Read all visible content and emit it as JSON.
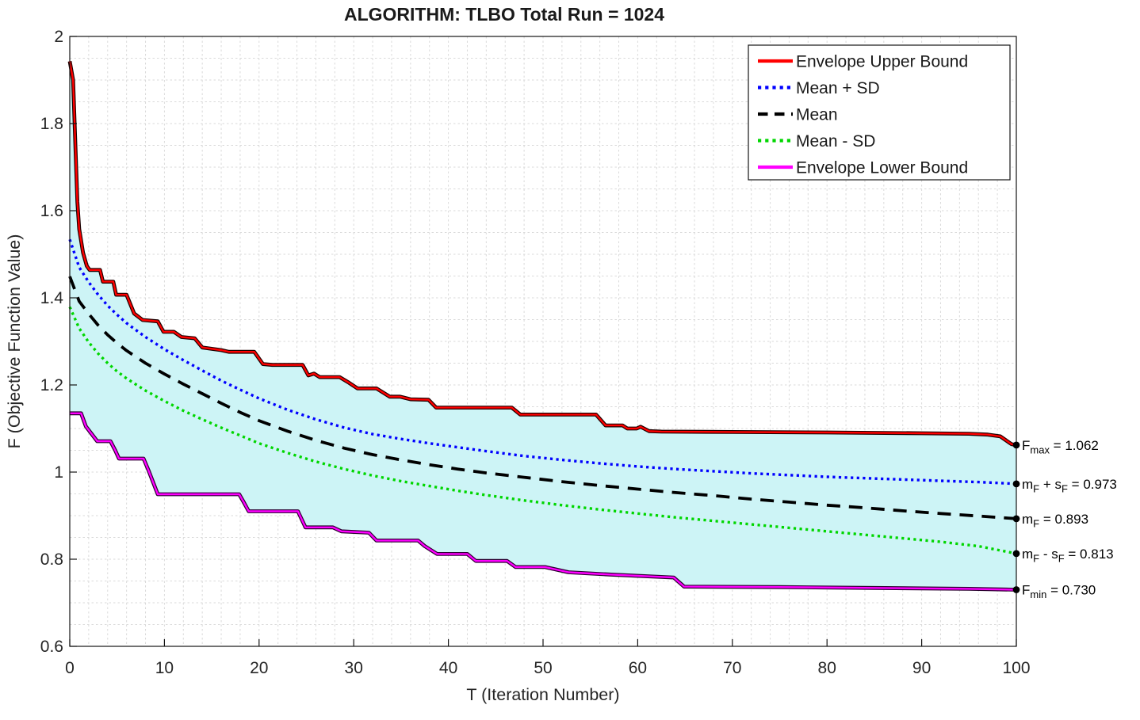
{
  "chart_data": {
    "type": "line",
    "title": "ALGORITHM: TLBO   Total Run = 1024",
    "xlabel": "T (Iteration Number)",
    "ylabel": "F (Objective Function Value)",
    "xlim": [
      0,
      100
    ],
    "ylim": [
      0.6,
      2
    ],
    "xticks": [
      0,
      10,
      20,
      30,
      40,
      50,
      60,
      70,
      80,
      90,
      100
    ],
    "xtick_labels": [
      "0",
      "10",
      "20",
      "30",
      "40",
      "50",
      "60",
      "70",
      "80",
      "90",
      "100"
    ],
    "yticks": [
      0.6,
      0.8,
      1.0,
      1.2,
      1.4,
      1.6,
      1.8,
      2.0
    ],
    "ytick_labels": [
      "0.6",
      "0.8",
      "1",
      "1.2",
      "1.4",
      "1.6",
      "1.8",
      "2"
    ],
    "grid": "minor-dashed",
    "minor_grid": {
      "x_step": 2,
      "y_step": 0.05
    },
    "colors": {
      "grid": "#dadada",
      "axis": "#141414",
      "tick_label": "#262626",
      "title": "#1a1a1a",
      "envelope_fill": "#cdf4f6",
      "annotation_marker": "#000000"
    },
    "legend": {
      "position": "top-right",
      "entries": [
        "Envelope Upper Bound",
        "Mean + SD",
        "Mean",
        "Mean - SD",
        "Envelope Lower Bound"
      ]
    },
    "series": [
      {
        "name": "Envelope Upper Bound",
        "color": "#ff0000",
        "outline": "#1c0000",
        "line": "solid",
        "points": [
          [
            0,
            1.943
          ],
          [
            0.35,
            1.9
          ],
          [
            0.8,
            1.62
          ],
          [
            1,
            1.558
          ],
          [
            1.4,
            1.504
          ],
          [
            1.8,
            1.473
          ],
          [
            2.1,
            1.464
          ],
          [
            3.2,
            1.464
          ],
          [
            3.5,
            1.437
          ],
          [
            4.6,
            1.437
          ],
          [
            4.9,
            1.407
          ],
          [
            6,
            1.407
          ],
          [
            6.8,
            1.364
          ],
          [
            7.7,
            1.349
          ],
          [
            9.3,
            1.346
          ],
          [
            9.9,
            1.322
          ],
          [
            11,
            1.322
          ],
          [
            11.8,
            1.31
          ],
          [
            13.2,
            1.307
          ],
          [
            14,
            1.286
          ],
          [
            16,
            1.28
          ],
          [
            16.8,
            1.276
          ],
          [
            19.5,
            1.276
          ],
          [
            20.4,
            1.248
          ],
          [
            21.4,
            1.246
          ],
          [
            24.6,
            1.246
          ],
          [
            25.2,
            1.222
          ],
          [
            25.8,
            1.226
          ],
          [
            26.4,
            1.218
          ],
          [
            28.5,
            1.218
          ],
          [
            29.5,
            1.205
          ],
          [
            30.4,
            1.192
          ],
          [
            32.4,
            1.192
          ],
          [
            33.8,
            1.173
          ],
          [
            34.9,
            1.173
          ],
          [
            36,
            1.167
          ],
          [
            37.9,
            1.166
          ],
          [
            38.7,
            1.148
          ],
          [
            46.7,
            1.148
          ],
          [
            47.6,
            1.132
          ],
          [
            55.6,
            1.132
          ],
          [
            56.6,
            1.107
          ],
          [
            58.4,
            1.107
          ],
          [
            58.9,
            1.1
          ],
          [
            59.9,
            1.1
          ],
          [
            60.3,
            1.104
          ],
          [
            61.2,
            1.094
          ],
          [
            62.5,
            1.093
          ],
          [
            70,
            1.092
          ],
          [
            80,
            1.091
          ],
          [
            90,
            1.089
          ],
          [
            95,
            1.088
          ],
          [
            97,
            1.086
          ],
          [
            98.3,
            1.082
          ],
          [
            99.5,
            1.064
          ],
          [
            100,
            1.062
          ]
        ]
      },
      {
        "name": "Mean + SD",
        "color": "#0000ff",
        "line": "dotted",
        "points": [
          [
            0,
            1.534
          ],
          [
            1,
            1.47
          ],
          [
            2,
            1.436
          ],
          [
            3,
            1.407
          ],
          [
            4,
            1.382
          ],
          [
            5,
            1.361
          ],
          [
            6,
            1.342
          ],
          [
            8,
            1.31
          ],
          [
            10,
            1.282
          ],
          [
            12,
            1.257
          ],
          [
            14,
            1.233
          ],
          [
            16,
            1.21
          ],
          [
            18,
            1.189
          ],
          [
            20,
            1.169
          ],
          [
            23,
            1.143
          ],
          [
            26,
            1.121
          ],
          [
            29,
            1.102
          ],
          [
            32,
            1.087
          ],
          [
            35,
            1.076
          ],
          [
            38,
            1.066
          ],
          [
            41,
            1.057
          ],
          [
            44,
            1.048
          ],
          [
            48,
            1.037
          ],
          [
            52,
            1.028
          ],
          [
            56,
            1.02
          ],
          [
            60,
            1.013
          ],
          [
            64,
            1.007
          ],
          [
            68,
            1.002
          ],
          [
            72,
            0.997
          ],
          [
            76,
            0.993
          ],
          [
            80,
            0.989
          ],
          [
            84,
            0.986
          ],
          [
            88,
            0.983
          ],
          [
            92,
            0.98
          ],
          [
            96,
            0.977
          ],
          [
            100,
            0.973
          ]
        ]
      },
      {
        "name": "Mean",
        "color": "#000000",
        "line": "dashed",
        "points": [
          [
            0,
            1.449
          ],
          [
            1,
            1.392
          ],
          [
            2,
            1.363
          ],
          [
            3,
            1.337
          ],
          [
            4,
            1.315
          ],
          [
            5,
            1.296
          ],
          [
            6,
            1.279
          ],
          [
            8,
            1.25
          ],
          [
            10,
            1.225
          ],
          [
            12,
            1.202
          ],
          [
            14,
            1.18
          ],
          [
            16,
            1.158
          ],
          [
            18,
            1.137
          ],
          [
            20,
            1.118
          ],
          [
            23,
            1.094
          ],
          [
            26,
            1.073
          ],
          [
            29,
            1.055
          ],
          [
            32,
            1.04
          ],
          [
            35,
            1.028
          ],
          [
            38,
            1.017
          ],
          [
            41,
            1.007
          ],
          [
            44,
            0.998
          ],
          [
            48,
            0.988
          ],
          [
            52,
            0.978
          ],
          [
            56,
            0.969
          ],
          [
            60,
            0.961
          ],
          [
            64,
            0.953
          ],
          [
            68,
            0.946
          ],
          [
            72,
            0.938
          ],
          [
            76,
            0.931
          ],
          [
            80,
            0.924
          ],
          [
            84,
            0.918
          ],
          [
            88,
            0.911
          ],
          [
            92,
            0.905
          ],
          [
            96,
            0.899
          ],
          [
            100,
            0.893
          ]
        ]
      },
      {
        "name": "Mean - SD",
        "color": "#00d600",
        "line": "dotted",
        "points": [
          [
            0,
            1.379
          ],
          [
            1,
            1.33
          ],
          [
            2,
            1.298
          ],
          [
            3,
            1.272
          ],
          [
            4,
            1.25
          ],
          [
            5,
            1.231
          ],
          [
            6,
            1.215
          ],
          [
            8,
            1.187
          ],
          [
            10,
            1.163
          ],
          [
            12,
            1.141
          ],
          [
            14,
            1.121
          ],
          [
            16,
            1.102
          ],
          [
            18,
            1.084
          ],
          [
            20,
            1.066
          ],
          [
            23,
            1.044
          ],
          [
            26,
            1.024
          ],
          [
            29,
            1.007
          ],
          [
            32,
            0.992
          ],
          [
            35,
            0.979
          ],
          [
            38,
            0.968
          ],
          [
            41,
            0.957
          ],
          [
            44,
            0.947
          ],
          [
            48,
            0.935
          ],
          [
            52,
            0.924
          ],
          [
            56,
            0.914
          ],
          [
            60,
            0.905
          ],
          [
            64,
            0.896
          ],
          [
            68,
            0.888
          ],
          [
            72,
            0.88
          ],
          [
            76,
            0.872
          ],
          [
            80,
            0.864
          ],
          [
            84,
            0.856
          ],
          [
            88,
            0.848
          ],
          [
            92,
            0.84
          ],
          [
            96,
            0.83
          ],
          [
            100,
            0.813
          ]
        ]
      },
      {
        "name": "Envelope Lower Bound",
        "color": "#ff00ff",
        "outline": "#2b0030",
        "line": "solid",
        "points": [
          [
            0,
            1.135
          ],
          [
            1.2,
            1.135
          ],
          [
            1.7,
            1.105
          ],
          [
            2.9,
            1.071
          ],
          [
            4.3,
            1.071
          ],
          [
            4.8,
            1.05
          ],
          [
            5.2,
            1.031
          ],
          [
            7.8,
            1.031
          ],
          [
            8.3,
            1.005
          ],
          [
            9.3,
            0.949
          ],
          [
            17.9,
            0.949
          ],
          [
            18.4,
            0.93
          ],
          [
            18.9,
            0.91
          ],
          [
            24.1,
            0.91
          ],
          [
            24.9,
            0.873
          ],
          [
            27.8,
            0.873
          ],
          [
            28.7,
            0.864
          ],
          [
            31.6,
            0.861
          ],
          [
            32.4,
            0.843
          ],
          [
            36.8,
            0.843
          ],
          [
            37.5,
            0.83
          ],
          [
            38.8,
            0.812
          ],
          [
            42,
            0.812
          ],
          [
            42.9,
            0.796
          ],
          [
            46.2,
            0.796
          ],
          [
            47.1,
            0.782
          ],
          [
            50.2,
            0.782
          ],
          [
            52.7,
            0.77
          ],
          [
            57,
            0.765
          ],
          [
            63.8,
            0.758
          ],
          [
            64.9,
            0.737
          ],
          [
            75,
            0.736
          ],
          [
            85,
            0.734
          ],
          [
            95,
            0.732
          ],
          [
            100,
            0.73
          ]
        ]
      }
    ],
    "annotations": [
      {
        "text": "F_max = 1.062",
        "value": 1.062,
        "parts": [
          {
            "t": "F"
          },
          {
            "t": "max",
            "sub": true
          },
          {
            "t": " = 1.062"
          }
        ]
      },
      {
        "text": "m_F + s_F = 0.973",
        "value": 0.973,
        "parts": [
          {
            "t": "m"
          },
          {
            "t": "F",
            "sub": true
          },
          {
            "t": " + s"
          },
          {
            "t": "F",
            "sub": true
          },
          {
            "t": " = 0.973"
          }
        ]
      },
      {
        "text": "m_F = 0.893",
        "value": 0.893,
        "parts": [
          {
            "t": "m"
          },
          {
            "t": "F",
            "sub": true
          },
          {
            "t": " = 0.893"
          }
        ]
      },
      {
        "text": "m_F - s_F = 0.813",
        "value": 0.813,
        "parts": [
          {
            "t": "m"
          },
          {
            "t": "F",
            "sub": true
          },
          {
            "t": " - s"
          },
          {
            "t": "F",
            "sub": true
          },
          {
            "t": " = 0.813"
          }
        ]
      },
      {
        "text": "F_min = 0.730",
        "value": 0.73,
        "parts": [
          {
            "t": "F"
          },
          {
            "t": "min",
            "sub": true
          },
          {
            "t": " = 0.730"
          }
        ]
      }
    ]
  }
}
